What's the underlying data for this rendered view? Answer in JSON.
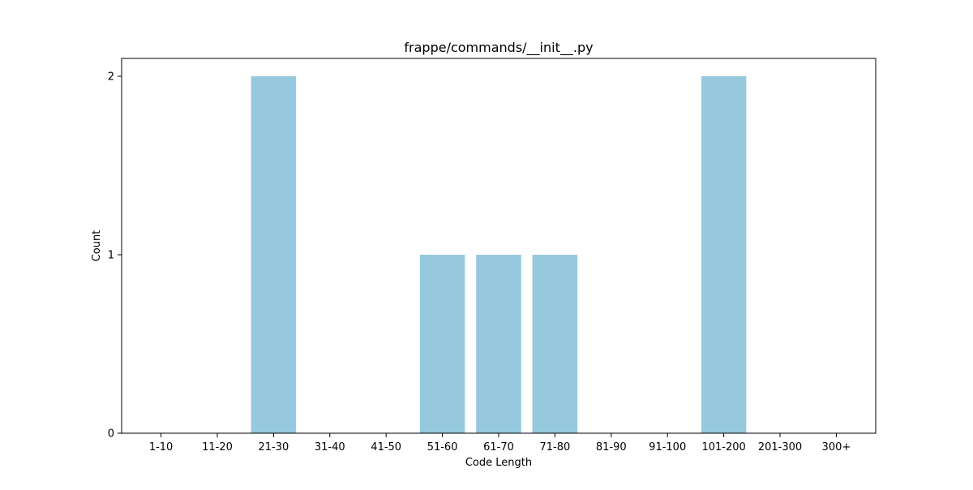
{
  "chart_data": {
    "type": "bar",
    "title": "frappe/commands/__init__.py",
    "xlabel": "Code Length",
    "ylabel": "Count",
    "categories": [
      "1-10",
      "11-20",
      "21-30",
      "31-40",
      "41-50",
      "51-60",
      "61-70",
      "71-80",
      "81-90",
      "91-100",
      "101-200",
      "201-300",
      "300+"
    ],
    "values": [
      0,
      0,
      2,
      0,
      0,
      1,
      1,
      1,
      0,
      0,
      2,
      0,
      0
    ],
    "yticks": [
      "0",
      "1",
      "2"
    ],
    "ylim": [
      0,
      2.1
    ],
    "grid": false,
    "legend": "none",
    "bar_color": "#96c9dd"
  }
}
